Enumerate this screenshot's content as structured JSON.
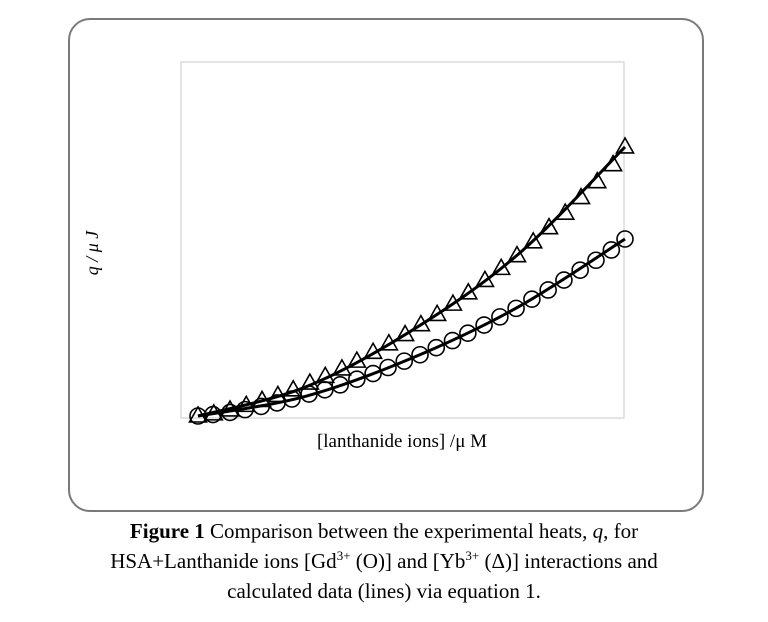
{
  "chart_data": {
    "type": "scatter",
    "title": "",
    "xlabel": "[lanthanide ions] /μ M",
    "ylabel": "q / μ J",
    "xlim": [
      0,
      1
    ],
    "ylim": [
      0,
      1
    ],
    "grid": false,
    "series": [
      {
        "name": "Gd3+ (O)",
        "marker": "circle",
        "points": [
          [
            0.0,
            0.0
          ],
          [
            0.035,
            0.004
          ],
          [
            0.075,
            0.01
          ],
          [
            0.11,
            0.018
          ],
          [
            0.148,
            0.027
          ],
          [
            0.185,
            0.037
          ],
          [
            0.22,
            0.048
          ],
          [
            0.26,
            0.062
          ],
          [
            0.297,
            0.074
          ],
          [
            0.333,
            0.088
          ],
          [
            0.372,
            0.104
          ],
          [
            0.41,
            0.12
          ],
          [
            0.445,
            0.137
          ],
          [
            0.483,
            0.155
          ],
          [
            0.52,
            0.173
          ],
          [
            0.558,
            0.193
          ],
          [
            0.596,
            0.213
          ],
          [
            0.632,
            0.234
          ],
          [
            0.67,
            0.257
          ],
          [
            0.707,
            0.28
          ],
          [
            0.745,
            0.304
          ],
          [
            0.782,
            0.33
          ],
          [
            0.82,
            0.356
          ],
          [
            0.857,
            0.384
          ],
          [
            0.895,
            0.412
          ],
          [
            0.932,
            0.44
          ],
          [
            0.968,
            0.469
          ],
          [
            1.0,
            0.5
          ]
        ],
        "fit": [
          [
            0.0,
            0.0
          ],
          [
            0.25,
            0.055
          ],
          [
            0.5,
            0.163
          ],
          [
            0.75,
            0.308
          ],
          [
            1.0,
            0.5
          ]
        ]
      },
      {
        "name": "Yb3+ (Δ)",
        "marker": "triangle",
        "points": [
          [
            0.0,
            0.0
          ],
          [
            0.037,
            0.006
          ],
          [
            0.075,
            0.017
          ],
          [
            0.113,
            0.03
          ],
          [
            0.15,
            0.044
          ],
          [
            0.187,
            0.058
          ],
          [
            0.223,
            0.074
          ],
          [
            0.262,
            0.093
          ],
          [
            0.298,
            0.112
          ],
          [
            0.337,
            0.133
          ],
          [
            0.372,
            0.155
          ],
          [
            0.41,
            0.18
          ],
          [
            0.447,
            0.204
          ],
          [
            0.485,
            0.23
          ],
          [
            0.522,
            0.258
          ],
          [
            0.56,
            0.287
          ],
          [
            0.597,
            0.316
          ],
          [
            0.633,
            0.348
          ],
          [
            0.672,
            0.383
          ],
          [
            0.71,
            0.417
          ],
          [
            0.747,
            0.453
          ],
          [
            0.785,
            0.492
          ],
          [
            0.822,
            0.532
          ],
          [
            0.86,
            0.573
          ],
          [
            0.897,
            0.617
          ],
          [
            0.935,
            0.662
          ],
          [
            0.972,
            0.71
          ],
          [
            1.0,
            0.76
          ]
        ],
        "fit": [
          [
            0.0,
            0.0
          ],
          [
            0.25,
            0.081
          ],
          [
            0.5,
            0.241
          ],
          [
            0.75,
            0.457
          ],
          [
            1.0,
            0.76
          ]
        ]
      }
    ]
  },
  "caption": {
    "label": "Figure 1",
    "line1_text": " Comparison between the experimental heats, ",
    "q": "q",
    "line1_end": ", for",
    "line2_a": "HSA+Lanthanide ions [Gd",
    "sup1": "3+",
    "line2_b": " (O)]  and [Yb",
    "sup2": "3+",
    "line2_c": " (Δ)] interactions and",
    "line3": "calculated data (lines) via equation 1."
  }
}
